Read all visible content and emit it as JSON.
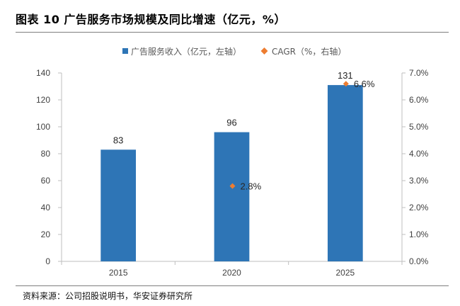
{
  "header": {
    "title": "图表 10  广告服务市场规模及同比增速（亿元，%）"
  },
  "footer": {
    "source": "资料来源：公司招股说明书，华安证券研究所"
  },
  "colors": {
    "bar": "#2e75b6",
    "marker": "#ed7d31",
    "axis": "#bfbfbf",
    "rule": "#7f7f7f"
  },
  "chart_data": {
    "type": "bar",
    "categories": [
      "2015",
      "2020",
      "2025"
    ],
    "series": [
      {
        "name": "广告服务收入（亿元，左轴）",
        "kind": "bar",
        "axis": "left",
        "values": [
          83,
          96,
          131
        ],
        "labels": [
          "83",
          "96",
          "131"
        ]
      },
      {
        "name": "CAGR（%，右轴）",
        "kind": "marker",
        "axis": "right",
        "values": [
          null,
          2.8,
          6.6
        ],
        "labels": [
          "",
          "2.8%",
          "6.6%"
        ]
      }
    ],
    "y_left": {
      "ylim": [
        0,
        140
      ],
      "ticks": [
        0,
        20,
        40,
        60,
        80,
        100,
        120,
        140
      ],
      "tick_labels": [
        "0",
        "20",
        "40",
        "60",
        "80",
        "100",
        "120",
        "140"
      ]
    },
    "y_right": {
      "ylim": [
        0,
        7
      ],
      "ticks": [
        0,
        1,
        2,
        3,
        4,
        5,
        6,
        7
      ],
      "tick_labels": [
        "0.0%",
        "1.0%",
        "2.0%",
        "3.0%",
        "4.0%",
        "5.0%",
        "6.0%",
        "7.0%"
      ]
    },
    "legend_position": "top-center",
    "grid": false
  }
}
